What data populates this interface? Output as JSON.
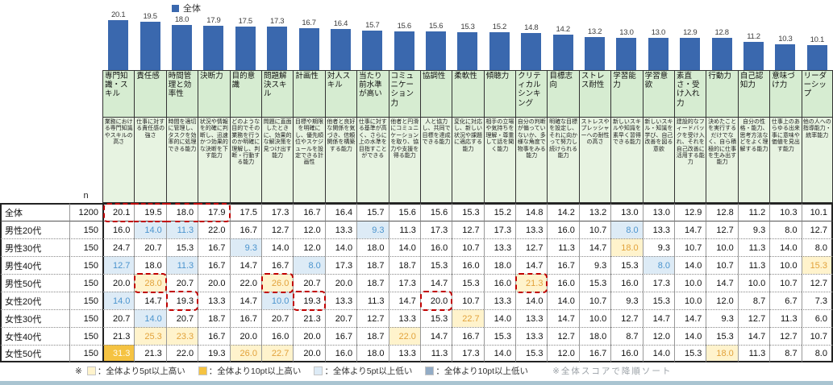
{
  "legend": {
    "series_label": "全体",
    "series_color": "#3A68AE"
  },
  "chart_data": {
    "type": "bar",
    "series_name": "全体",
    "categories": [
      "専門知識・スキル",
      "責任感",
      "時間管理と効率性",
      "決断力",
      "目的意識",
      "問題解決スキル",
      "計画性",
      "対人スキル",
      "当たり前水準が高い",
      "コミュニケーション力",
      "協調性",
      "柔軟性",
      "傾聴力",
      "クリティカルシンキング",
      "目標志向",
      "ストレス耐性",
      "学習能力",
      "学習意欲",
      "素直さ・受け入れ力",
      "行動力",
      "自己認知力",
      "意味づけ力",
      "リーダーシップ"
    ],
    "values": [
      20.1,
      19.5,
      18.0,
      17.9,
      17.5,
      17.3,
      16.7,
      16.4,
      15.7,
      15.6,
      15.6,
      15.3,
      15.2,
      14.8,
      14.2,
      13.2,
      13.0,
      13.0,
      12.9,
      12.8,
      11.2,
      10.3,
      10.1
    ],
    "bar_color": "#3A68AE",
    "value_labels_shown": true,
    "sorted": "descending by 全体 score"
  },
  "columns": [
    {
      "label": "専門知識・スキル",
      "description": "業務における専門知識やスキルの高さ"
    },
    {
      "label": "責任感",
      "description": "仕事に対する責任感の強さ"
    },
    {
      "label": "時間管理と効率性",
      "description": "時間を適切に管理し、タスクを効率的に処理できる能力"
    },
    {
      "label": "決断力",
      "description": "状況や情報を的確に判断し、迅速かつ効果的な決断を下す能力"
    },
    {
      "label": "目的意識",
      "description": "どのような目的でその業務を行うのか明確に理解し、判断・行動する能力"
    },
    {
      "label": "問題解決スキル",
      "description": "問題に直面したときに、効果的な解決策を見つけ出す能力"
    },
    {
      "label": "計画性",
      "description": "目標や期限を明確にし、優先順位やスケジュールを設定できる計画性"
    },
    {
      "label": "対人スキル",
      "description": "他者と良好な関係を気づき、信頼関係を構築する能力"
    },
    {
      "label": "当たり前水準が高い",
      "description": "仕事に対する基準が高く、さらに上の水準を目指すことができる"
    },
    {
      "label": "コミュニケーション力",
      "description": "他者と円滑にコミュニケーションを取り、協力や支援を得る能力"
    },
    {
      "label": "協調性",
      "description": "人と協力し、共同で目標を達成できる能力"
    },
    {
      "label": "柔軟性",
      "description": "変化に対応し、新しい状況や課題に適応する能力"
    },
    {
      "label": "傾聴力",
      "description": "相手の立場や気持ちを理解・尊重して話を聞く能力"
    },
    {
      "label": "クリティカルシンキング",
      "description": "自分の判断が偏っていないか、多様な角度で物事をみる能力"
    },
    {
      "label": "目標志向",
      "description": "明確な目標を設定し、それに向かって努力し続けられる能力"
    },
    {
      "label": "ストレス耐性",
      "description": "ストレスやプレッシャーへの耐性の高さ"
    },
    {
      "label": "学習能力",
      "description": "新しいスキルや知識を素早く習得できる能力"
    },
    {
      "label": "学習意欲",
      "description": "新しいスキル・知識を学び、自己改善を図る意欲"
    },
    {
      "label": "素直さ・受け入れ力",
      "description": "建設的なフィードバックを受け入れ、それを自己改善に活用する能力"
    },
    {
      "label": "行動力",
      "description": "決めたことを実行するだけでなく、自ら積極的に仕事を生み出す能力"
    },
    {
      "label": "自己認知力",
      "description": "自分の性格・能力、思考方法などをよく理解する能力"
    },
    {
      "label": "意味づけ力",
      "description": "仕事上のあらゆる出来事に意味や価値を見出す能力"
    },
    {
      "label": "リーダーシップ",
      "description": "他の人への指導能力・統率能力"
    }
  ],
  "table": {
    "n_header": "n",
    "rows": [
      {
        "label": "全体",
        "n": 1200,
        "values": [
          20.1,
          19.5,
          18.0,
          17.9,
          17.5,
          17.3,
          16.7,
          16.4,
          15.7,
          15.6,
          15.6,
          15.3,
          15.2,
          14.8,
          14.2,
          13.2,
          13.0,
          13.0,
          12.9,
          12.8,
          11.2,
          10.3,
          10.1
        ]
      },
      {
        "label": "男性20代",
        "n": 150,
        "values": [
          16.0,
          14.0,
          11.3,
          22.0,
          16.7,
          12.7,
          12.0,
          13.3,
          9.3,
          11.3,
          17.3,
          12.7,
          17.3,
          13.3,
          16.0,
          10.7,
          8.0,
          13.3,
          14.7,
          12.7,
          9.3,
          8.0,
          12.7
        ]
      },
      {
        "label": "男性30代",
        "n": 150,
        "values": [
          24.7,
          20.7,
          15.3,
          16.7,
          9.3,
          14.0,
          12.0,
          14.0,
          18.0,
          14.0,
          16.0,
          10.7,
          13.3,
          12.7,
          11.3,
          14.7,
          18.0,
          9.3,
          10.7,
          10.0,
          11.3,
          14.0,
          8.0
        ]
      },
      {
        "label": "男性40代",
        "n": 150,
        "values": [
          12.7,
          18.0,
          11.3,
          16.7,
          14.7,
          16.7,
          8.0,
          17.3,
          18.7,
          18.7,
          15.3,
          16.0,
          18.0,
          14.7,
          16.7,
          9.3,
          15.3,
          8.0,
          14.0,
          10.7,
          11.3,
          10.0,
          15.3
        ]
      },
      {
        "label": "男性50代",
        "n": 150,
        "values": [
          20.0,
          28.0,
          20.7,
          20.0,
          22.0,
          26.0,
          20.7,
          20.0,
          18.7,
          17.3,
          14.7,
          15.3,
          16.0,
          21.3,
          16.0,
          15.3,
          16.0,
          17.3,
          10.0,
          14.7,
          10.0,
          10.7,
          12.7
        ]
      },
      {
        "label": "女性20代",
        "n": 150,
        "values": [
          14.0,
          14.7,
          19.3,
          13.3,
          14.7,
          10.0,
          19.3,
          13.3,
          11.3,
          14.7,
          20.0,
          10.7,
          13.3,
          14.0,
          14.0,
          10.7,
          9.3,
          15.3,
          10.0,
          12.0,
          8.7,
          6.7,
          7.3
        ]
      },
      {
        "label": "女性30代",
        "n": 150,
        "values": [
          20.7,
          14.0,
          20.7,
          18.7,
          16.7,
          20.7,
          21.3,
          20.7,
          12.7,
          13.3,
          15.3,
          22.7,
          14.0,
          13.3,
          14.7,
          10.0,
          12.7,
          14.7,
          14.7,
          9.3,
          12.7,
          11.3,
          6.0
        ]
      },
      {
        "label": "女性40代",
        "n": 150,
        "values": [
          21.3,
          25.3,
          23.3,
          16.7,
          20.0,
          16.0,
          20.0,
          16.7,
          18.7,
          22.0,
          14.7,
          16.7,
          15.3,
          13.3,
          12.7,
          18.0,
          8.7,
          12.0,
          14.0,
          15.3,
          14.7,
          12.7,
          10.7
        ]
      },
      {
        "label": "女性50代",
        "n": 150,
        "values": [
          31.3,
          21.3,
          22.0,
          19.3,
          26.0,
          22.7,
          20.0,
          16.0,
          18.0,
          13.3,
          11.3,
          17.3,
          14.0,
          15.3,
          12.0,
          16.7,
          16.0,
          14.0,
          15.3,
          18.0,
          11.3,
          8.7,
          8.0
        ]
      }
    ]
  },
  "highlight_rules": {
    "high": {
      "threshold": "+5pt",
      "bg": "#FFF3CC",
      "text": "#E2A23B"
    },
    "strong_high": {
      "threshold": "+10pt",
      "bg": "#F5C342",
      "text": "#FFFDF0"
    },
    "low": {
      "threshold": "-5pt",
      "bg": "#DDEBF6",
      "text": "#4B94CE"
    },
    "strong_low": {
      "threshold": "-10pt",
      "bg": "#93ACC6",
      "text": "#FFFFFF"
    }
  },
  "annotations": {
    "dashed_color": "#C00000",
    "dashed_boxes": [
      {
        "row": 0,
        "col_start": 0,
        "col_end": 3
      },
      {
        "row": 4,
        "col_start": 1,
        "col_end": 1
      },
      {
        "row": 4,
        "col_start": 5,
        "col_end": 5
      },
      {
        "row": 4,
        "col_start": 13,
        "col_end": 13
      },
      {
        "row": 5,
        "col_start": 2,
        "col_end": 2
      },
      {
        "row": 5,
        "col_start": 6,
        "col_end": 6
      },
      {
        "row": 5,
        "col_start": 10,
        "col_end": 10
      }
    ]
  },
  "footnote": {
    "marker": "※",
    "items": [
      {
        "label": "：全体より5pt以上高い",
        "color": "#FFF3CC"
      },
      {
        "label": "：全体より10pt以上高い",
        "color": "#F5C342"
      },
      {
        "label": "：全体より5pt以上低い",
        "color": "#DDEBF6"
      },
      {
        "label": "：全体より10pt以上低い",
        "color": "#93ACC6"
      }
    ],
    "sort_note": "※全体スコアで降順ソート"
  }
}
